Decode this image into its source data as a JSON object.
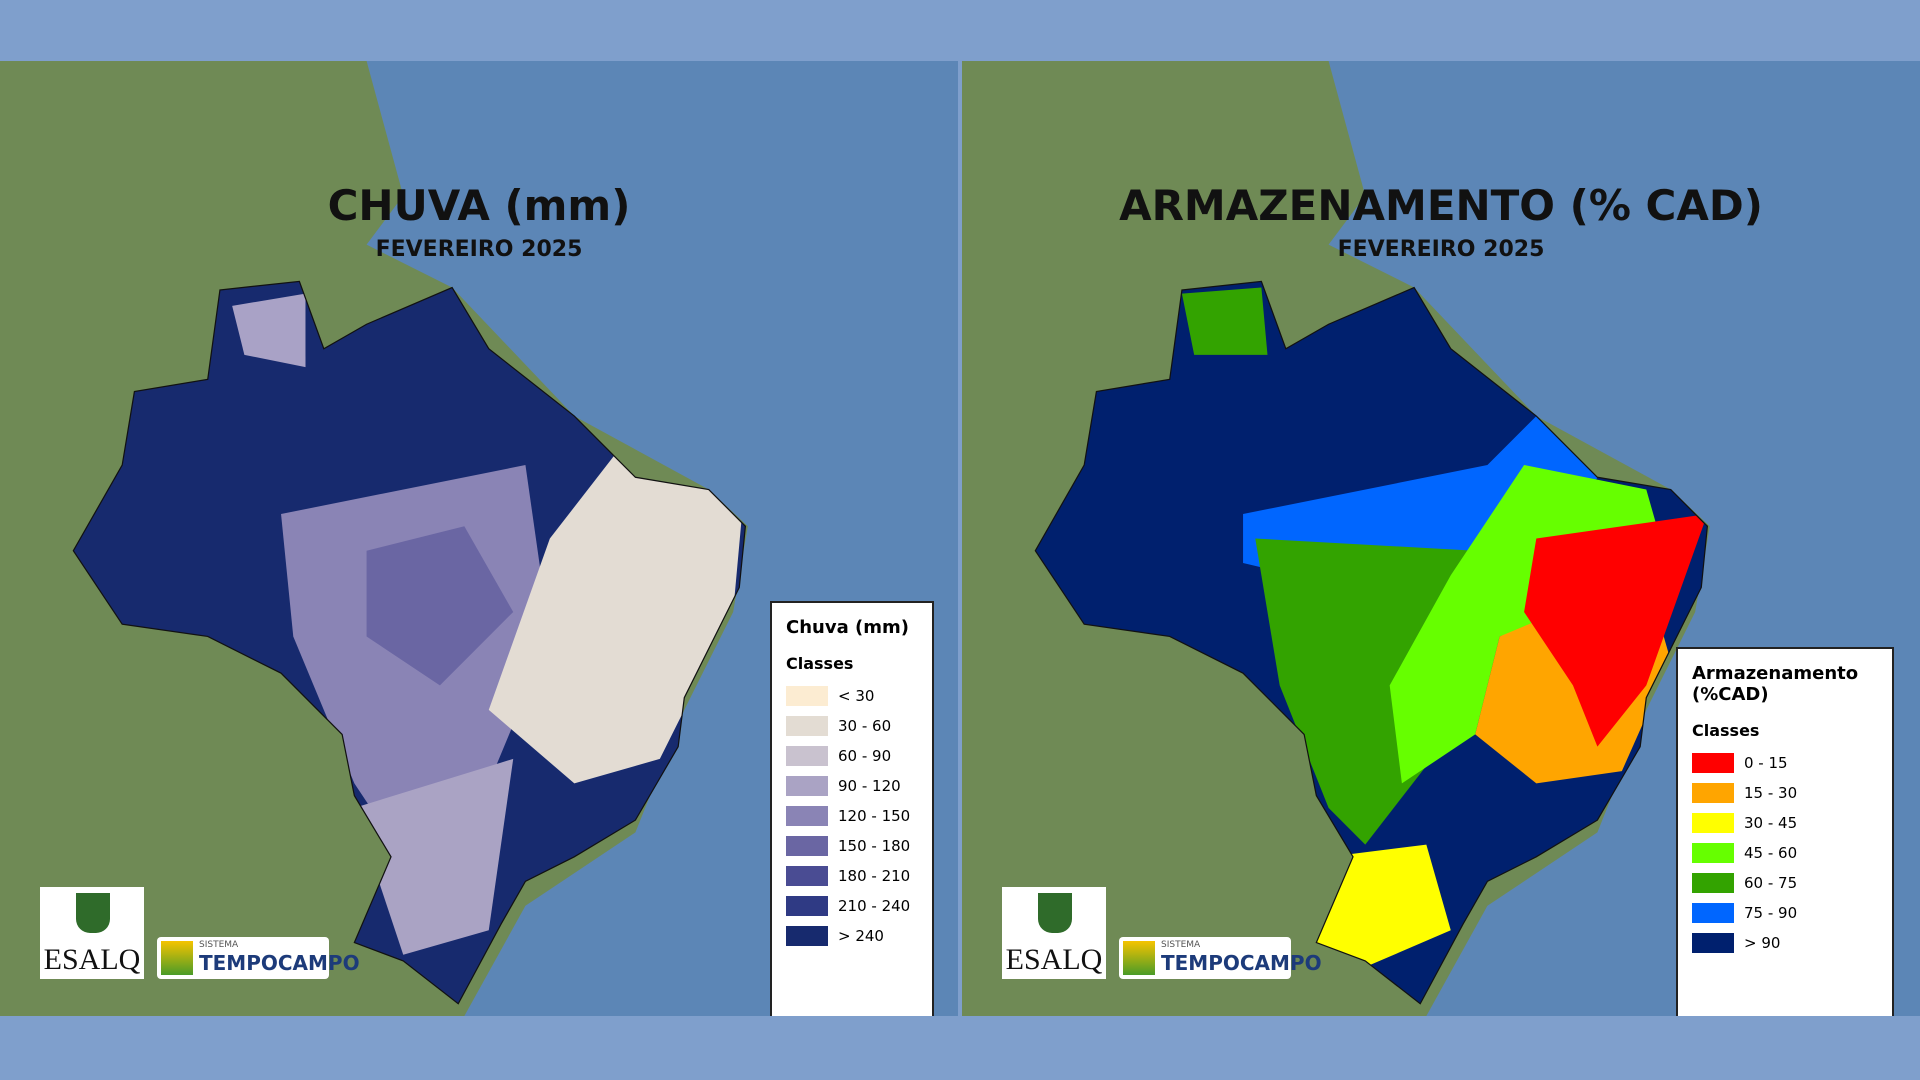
{
  "panels": [
    {
      "title": "CHUVA (mm)",
      "subtitle": "FEVEREIRO 2025",
      "legend": {
        "title": "Chuva (mm)",
        "classes_label": "Classes",
        "items": [
          {
            "label": "< 30",
            "color": "#fcecd2"
          },
          {
            "label": "30 - 60",
            "color": "#e3dcd3"
          },
          {
            "label": "60 - 90",
            "color": "#c9c2cf"
          },
          {
            "label": "90 - 120",
            "color": "#aaa3c4"
          },
          {
            "label": "120 - 150",
            "color": "#8a84b5"
          },
          {
            "label": "150 - 180",
            "color": "#6a66a3"
          },
          {
            "label": "180 - 210",
            "color": "#4a4c93"
          },
          {
            "label": "210 - 240",
            "color": "#2f3a84"
          },
          {
            "label": "> 240",
            "color": "#172a6e"
          }
        ]
      },
      "logos": {
        "esalq": "ESALQ",
        "sistema": "SISTEMA",
        "tempocampo": "TEMPOCAMPO"
      }
    },
    {
      "title": "ARMAZENAMENTO (% CAD)",
      "subtitle": "FEVEREIRO 2025",
      "legend": {
        "title": "Armazenamento (%CAD)",
        "classes_label": "Classes",
        "items": [
          {
            "label": "0 - 15",
            "color": "#ff0000"
          },
          {
            "label": "15 - 30",
            "color": "#ffa500"
          },
          {
            "label": "30 - 45",
            "color": "#ffff00"
          },
          {
            "label": "45 - 60",
            "color": "#66ff00"
          },
          {
            "label": "60 - 75",
            "color": "#33a300"
          },
          {
            "label": "75 - 90",
            "color": "#0066ff"
          },
          {
            "label": "> 90",
            "color": "#00206e"
          }
        ]
      },
      "logos": {
        "esalq": "ESALQ",
        "sistema": "SISTEMA",
        "tempocampo": "TEMPOCAMPO"
      }
    }
  ]
}
